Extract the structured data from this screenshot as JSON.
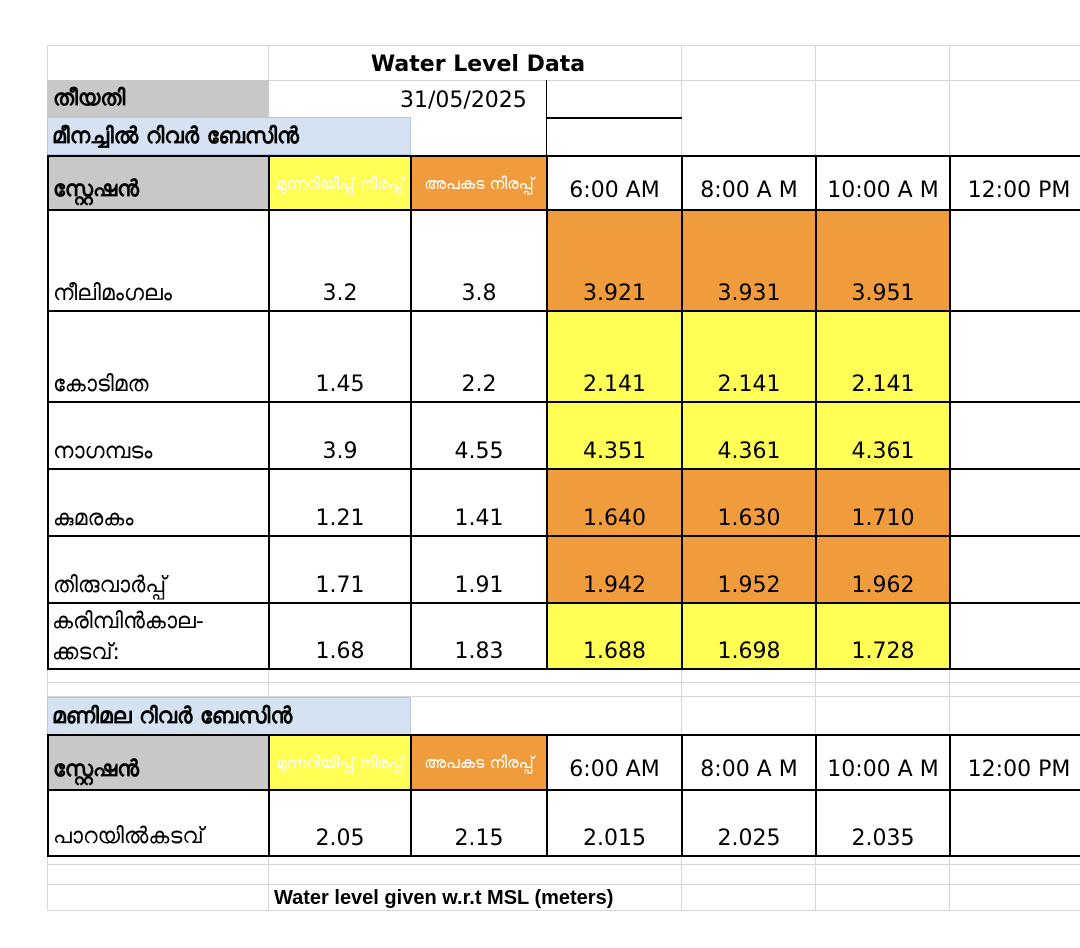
{
  "title": "Water Level Data",
  "date_label": "തീയതി",
  "date_value": "31/05/2025",
  "footnote": "Water level given w.r.t MSL (meters)",
  "colors": {
    "warning": "#ffff55",
    "danger": "#f09c3c",
    "header_grey": "#c8c8c8",
    "basin_blue": "#d4e2f2"
  },
  "basins": [
    {
      "name": "മീനച്ചിൽ റിവർ ബേസിൻ",
      "station_header": "സ്റ്റേഷൻ",
      "warning_header": "മുന്നറിയിപ്പ് നിരപ്പ്",
      "danger_header": "അപകട നിരപ്പ്",
      "times": [
        "6:00 AM",
        "8:00 A M",
        "10:00 A M",
        "12:00 PM"
      ],
      "stations": [
        {
          "name": "നീലിമംഗലം",
          "warning": "3.2",
          "danger": "3.8",
          "readings": [
            "3.921",
            "3.931",
            "3.951",
            ""
          ],
          "status": "danger"
        },
        {
          "name": "കോടിമത",
          "warning": "1.45",
          "danger": "2.2",
          "readings": [
            "2.141",
            "2.141",
            "2.141",
            ""
          ],
          "status": "warning"
        },
        {
          "name": "നാഗമ്പടം",
          "warning": "3.9",
          "danger": "4.55",
          "readings": [
            "4.351",
            "4.361",
            "4.361",
            ""
          ],
          "status": "warning"
        },
        {
          "name": "കുമരകം",
          "warning": "1.21",
          "danger": "1.41",
          "readings": [
            "1.640",
            "1.630",
            "1.710",
            ""
          ],
          "status": "danger"
        },
        {
          "name": "തിരുവാർപ്പ്",
          "warning": "1.71",
          "danger": "1.91",
          "readings": [
            "1.942",
            "1.952",
            "1.962",
            ""
          ],
          "status": "danger"
        },
        {
          "name": "കരിമ്പിൻകാല-",
          "name2": "ക്കടവ്:",
          "warning": "1.68",
          "danger": "1.83",
          "readings": [
            "1.688",
            "1.698",
            "1.728",
            ""
          ],
          "status": "warning"
        }
      ]
    },
    {
      "name": "മണിമല റിവർ ബേസിൻ",
      "station_header": "സ്റ്റേഷൻ",
      "warning_header": "മുന്നറിയിപ്പ് നിരപ്പ്",
      "danger_header": "അപകട നിരപ്പ്",
      "times": [
        "6:00 AM",
        "8:00 A M",
        "10:00 A M",
        "12:00 PM"
      ],
      "stations": [
        {
          "name": "പാറയിൽകടവ്",
          "warning": "2.05",
          "danger": "2.15",
          "readings": [
            "2.015",
            "2.025",
            "2.035",
            ""
          ],
          "status": "normal"
        }
      ]
    }
  ]
}
